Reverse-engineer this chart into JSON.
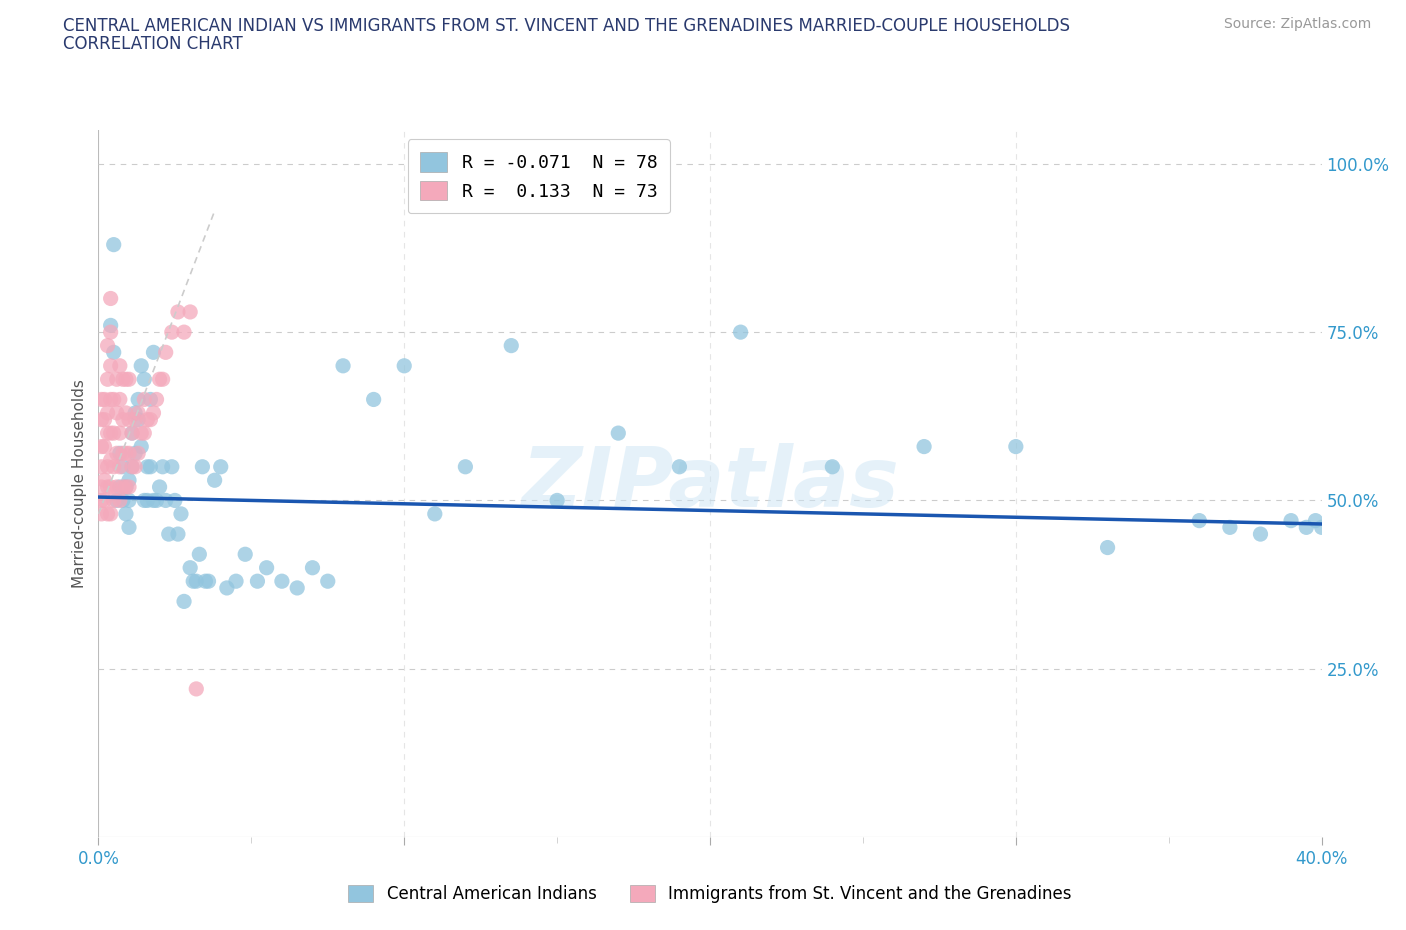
{
  "title_line1": "CENTRAL AMERICAN INDIAN VS IMMIGRANTS FROM ST. VINCENT AND THE GRENADINES MARRIED-COUPLE HOUSEHOLDS",
  "title_line2": "CORRELATION CHART",
  "source": "Source: ZipAtlas.com",
  "ylabel": "Married-couple Households",
  "watermark": "ZIPatlas",
  "blue_label": "Central American Indians",
  "pink_label": "Immigrants from St. Vincent and the Grenadines",
  "blue_R": -0.071,
  "blue_N": 78,
  "pink_R": 0.133,
  "pink_N": 73,
  "blue_color": "#92c5de",
  "pink_color": "#f4a9bb",
  "trend_blue_color": "#1a56b0",
  "trend_pink_color": "#d45060",
  "xmin": 0.0,
  "xmax": 0.4,
  "ymin": 0.0,
  "ymax": 1.05,
  "blue_x": [
    0.004,
    0.005,
    0.005,
    0.006,
    0.007,
    0.007,
    0.008,
    0.008,
    0.009,
    0.009,
    0.01,
    0.01,
    0.01,
    0.011,
    0.011,
    0.012,
    0.012,
    0.013,
    0.013,
    0.014,
    0.014,
    0.015,
    0.015,
    0.016,
    0.016,
    0.017,
    0.017,
    0.018,
    0.018,
    0.019,
    0.02,
    0.021,
    0.022,
    0.023,
    0.024,
    0.025,
    0.026,
    0.027,
    0.028,
    0.03,
    0.031,
    0.032,
    0.033,
    0.034,
    0.035,
    0.036,
    0.038,
    0.04,
    0.042,
    0.045,
    0.048,
    0.052,
    0.055,
    0.06,
    0.065,
    0.07,
    0.075,
    0.08,
    0.09,
    0.1,
    0.11,
    0.12,
    0.135,
    0.15,
    0.17,
    0.19,
    0.21,
    0.24,
    0.27,
    0.3,
    0.33,
    0.36,
    0.37,
    0.38,
    0.39,
    0.395,
    0.398,
    0.4
  ],
  "blue_y": [
    0.76,
    0.88,
    0.72,
    0.5,
    0.52,
    0.57,
    0.5,
    0.55,
    0.48,
    0.52,
    0.5,
    0.53,
    0.46,
    0.6,
    0.55,
    0.63,
    0.57,
    0.65,
    0.62,
    0.7,
    0.58,
    0.68,
    0.5,
    0.5,
    0.55,
    0.65,
    0.55,
    0.5,
    0.72,
    0.5,
    0.52,
    0.55,
    0.5,
    0.45,
    0.55,
    0.5,
    0.45,
    0.48,
    0.35,
    0.4,
    0.38,
    0.38,
    0.42,
    0.55,
    0.38,
    0.38,
    0.53,
    0.55,
    0.37,
    0.38,
    0.42,
    0.38,
    0.4,
    0.38,
    0.37,
    0.4,
    0.38,
    0.7,
    0.65,
    0.7,
    0.48,
    0.55,
    0.73,
    0.5,
    0.6,
    0.55,
    0.75,
    0.55,
    0.58,
    0.58,
    0.43,
    0.47,
    0.46,
    0.45,
    0.47,
    0.46,
    0.47,
    0.46
  ],
  "pink_x": [
    0.001,
    0.001,
    0.001,
    0.001,
    0.001,
    0.001,
    0.001,
    0.002,
    0.002,
    0.002,
    0.002,
    0.002,
    0.003,
    0.003,
    0.003,
    0.003,
    0.003,
    0.003,
    0.003,
    0.004,
    0.004,
    0.004,
    0.004,
    0.004,
    0.004,
    0.004,
    0.004,
    0.005,
    0.005,
    0.005,
    0.005,
    0.006,
    0.006,
    0.006,
    0.006,
    0.007,
    0.007,
    0.007,
    0.007,
    0.007,
    0.008,
    0.008,
    0.008,
    0.008,
    0.009,
    0.009,
    0.009,
    0.009,
    0.01,
    0.01,
    0.01,
    0.01,
    0.011,
    0.011,
    0.012,
    0.012,
    0.013,
    0.013,
    0.014,
    0.015,
    0.015,
    0.016,
    0.017,
    0.018,
    0.019,
    0.02,
    0.021,
    0.022,
    0.024,
    0.026,
    0.028,
    0.03,
    0.032
  ],
  "pink_y": [
    0.5,
    0.48,
    0.52,
    0.55,
    0.58,
    0.62,
    0.65,
    0.5,
    0.53,
    0.58,
    0.62,
    0.65,
    0.48,
    0.52,
    0.55,
    0.6,
    0.63,
    0.68,
    0.73,
    0.48,
    0.52,
    0.56,
    0.6,
    0.65,
    0.7,
    0.75,
    0.8,
    0.5,
    0.55,
    0.6,
    0.65,
    0.52,
    0.57,
    0.63,
    0.68,
    0.5,
    0.55,
    0.6,
    0.65,
    0.7,
    0.52,
    0.57,
    0.62,
    0.68,
    0.52,
    0.57,
    0.63,
    0.68,
    0.52,
    0.57,
    0.62,
    0.68,
    0.55,
    0.6,
    0.55,
    0.62,
    0.57,
    0.63,
    0.6,
    0.6,
    0.65,
    0.62,
    0.62,
    0.63,
    0.65,
    0.68,
    0.68,
    0.72,
    0.75,
    0.78,
    0.75,
    0.78,
    0.22
  ],
  "legend_text": [
    "R = -0.071  N = 78",
    "R =  0.133  N = 73"
  ]
}
